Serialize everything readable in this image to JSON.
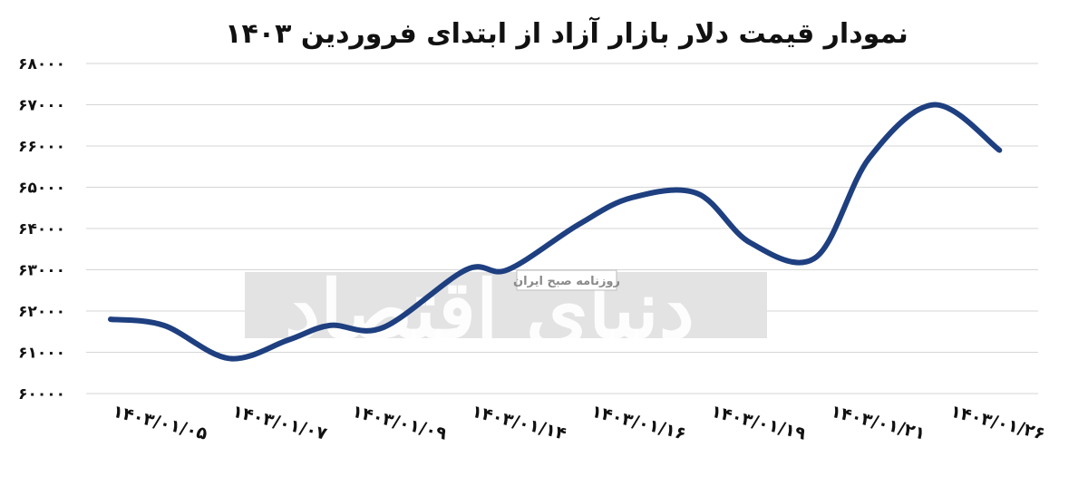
{
  "chart_data": {
    "type": "line",
    "title": "نمودار قیمت دلار بازار آزاد از ابتدای فروردین ۱۴۰۳",
    "xlabel": "",
    "ylabel": "",
    "ylim": [
      60000,
      68000
    ],
    "grid": true,
    "legend": "none",
    "line_color": "#1e3f80",
    "ytick_values": [
      60000,
      61000,
      62000,
      63000,
      64000,
      65000,
      66000,
      67000,
      68000
    ],
    "yticks": [
      "۶۰۰۰۰",
      "۶۱۰۰۰",
      "۶۲۰۰۰",
      "۶۳۰۰۰",
      "۶۴۰۰۰",
      "۶۵۰۰۰",
      "۶۶۰۰۰",
      "۶۷۰۰۰",
      "۶۸۰۰۰"
    ],
    "categories": [
      "۱۴۰۳/۰۱/۰۵",
      "۱۴۰۳/۰۱/۰۷",
      "۱۴۰۳/۰۱/۰۹",
      "۱۴۰۳/۰۱/۱۴",
      "۱۴۰۳/۰۱/۱۶",
      "۱۴۰۳/۰۱/۱۹",
      "۱۴۰۳/۰۱/۲۱",
      "۱۴۰۳/۰۱/۲۶"
    ],
    "points": [
      {
        "x": 0.0,
        "y": 61800
      },
      {
        "x": 0.45,
        "y": 61650
      },
      {
        "x": 1.0,
        "y": 60850
      },
      {
        "x": 1.5,
        "y": 61300
      },
      {
        "x": 1.85,
        "y": 61650
      },
      {
        "x": 2.3,
        "y": 61600
      },
      {
        "x": 3.0,
        "y": 63000
      },
      {
        "x": 3.35,
        "y": 63000
      },
      {
        "x": 3.95,
        "y": 64100
      },
      {
        "x": 4.4,
        "y": 64750
      },
      {
        "x": 4.95,
        "y": 64850
      },
      {
        "x": 5.4,
        "y": 63650
      },
      {
        "x": 5.95,
        "y": 63300
      },
      {
        "x": 6.4,
        "y": 65700
      },
      {
        "x": 6.95,
        "y": 67000
      },
      {
        "x": 7.5,
        "y": 65900
      }
    ]
  },
  "watermark": {
    "brand": "دنیای اقتصاد",
    "subtitle": "روزنامه صبح ایران"
  }
}
